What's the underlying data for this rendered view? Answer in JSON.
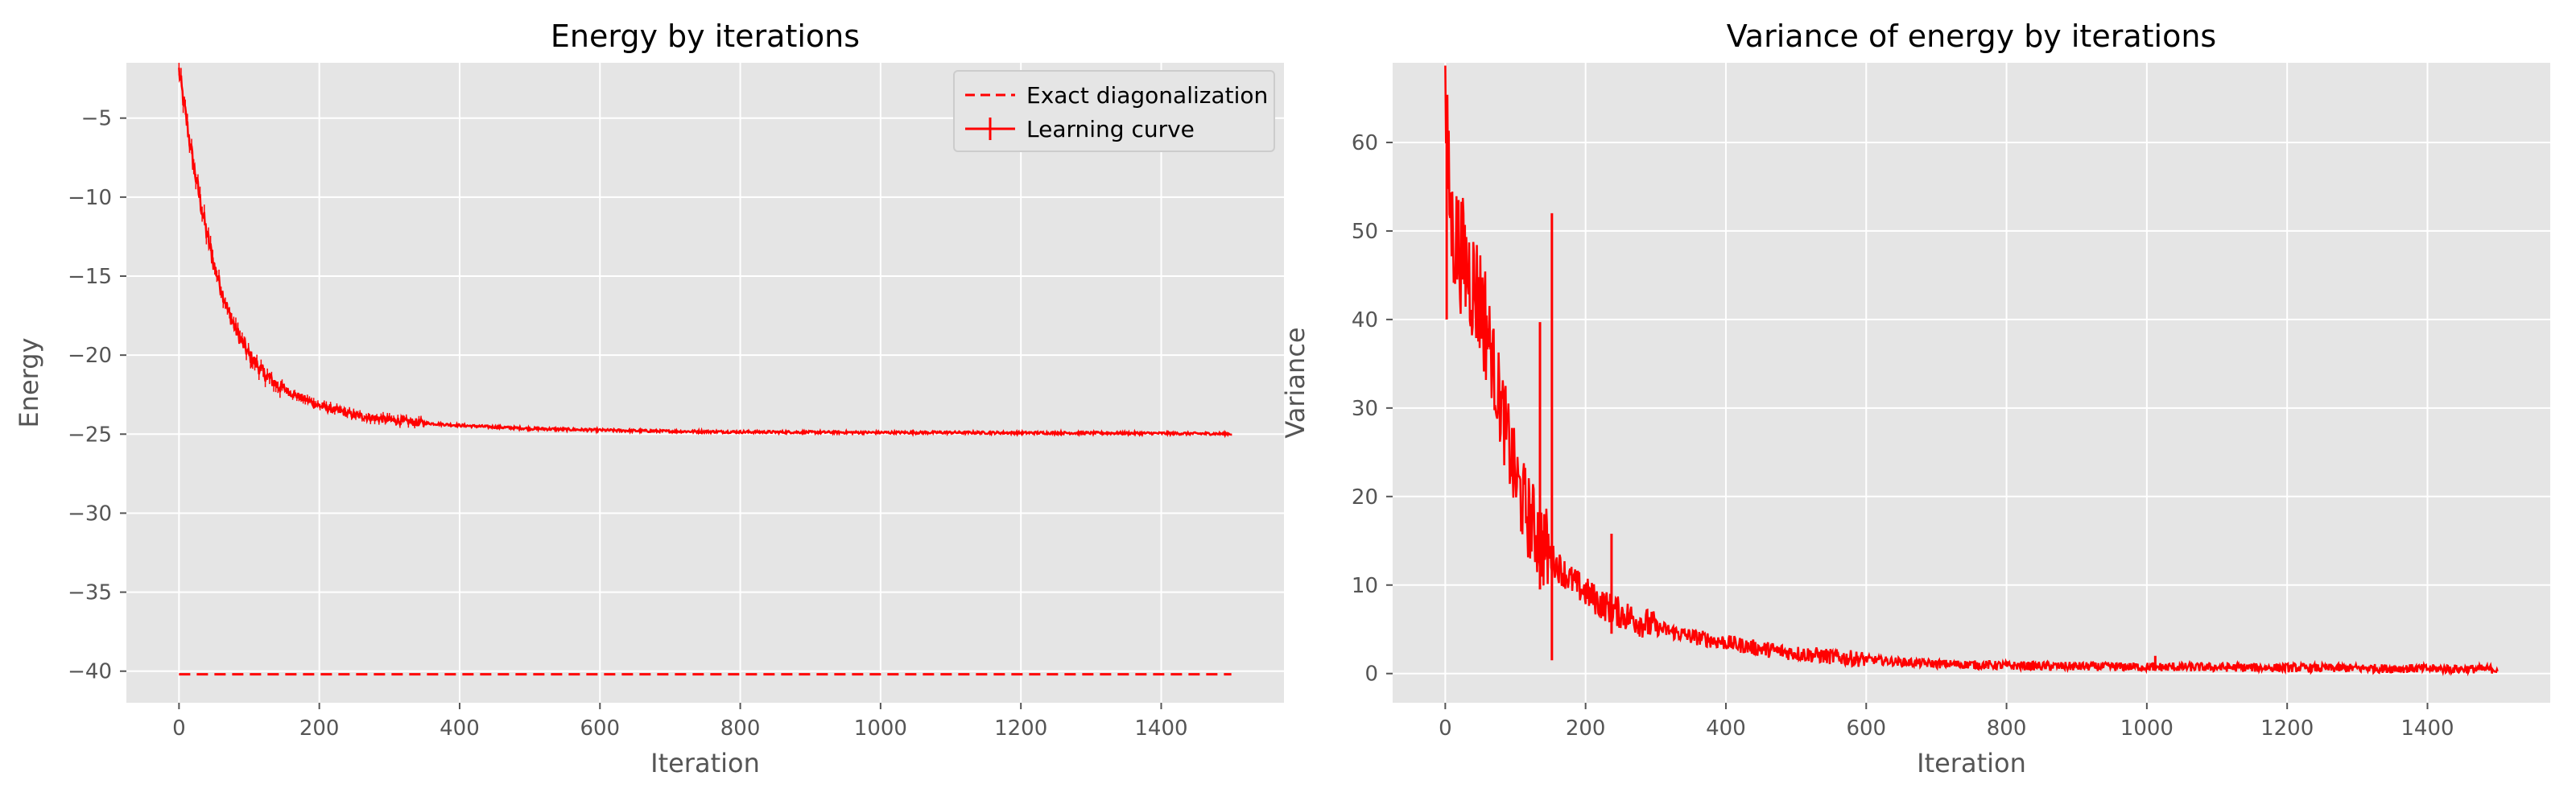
{
  "colors": {
    "panel_bg": "#e5e5e5",
    "grid": "#ffffff",
    "line": "#ff0000",
    "tick_text": "#555555",
    "legend_bg": "#e5e5e5",
    "legend_border": "#cccccc"
  },
  "chart_data": [
    {
      "type": "line",
      "title": "Energy by iterations",
      "xlabel": "Iteration",
      "ylabel": "Energy",
      "xlim": [
        -75,
        1575
      ],
      "ylim": [
        -42,
        -1.5
      ],
      "xticks": [
        0,
        200,
        400,
        600,
        800,
        1000,
        1200,
        1400
      ],
      "xtick_labels": [
        "0",
        "200",
        "400",
        "600",
        "800",
        "1000",
        "1200",
        "1400"
      ],
      "yticks": [
        -40,
        -35,
        -30,
        -25,
        -20,
        -15,
        -10,
        -5
      ],
      "ytick_labels": [
        "−40",
        "−35",
        "−30",
        "−25",
        "−20",
        "−15",
        "−10",
        "−5"
      ],
      "grid": true,
      "legend": "top-right",
      "series": [
        {
          "name": "Exact diagonalization",
          "style": "dashed",
          "color": "#ff0000",
          "x": [
            0,
            1500
          ],
          "y": [
            -40.2,
            -40.2
          ]
        },
        {
          "name": "Learning curve",
          "style": "solid-errorbar",
          "color": "#ff0000",
          "x": [
            0,
            5,
            10,
            20,
            30,
            40,
            50,
            60,
            70,
            80,
            90,
            100,
            120,
            140,
            160,
            180,
            200,
            250,
            300,
            350,
            400,
            450,
            500,
            600,
            700,
            800,
            900,
            1000,
            1100,
            1200,
            1300,
            1400,
            1500
          ],
          "y": [
            -2.0,
            -3.5,
            -5.0,
            -7.8,
            -10.2,
            -12.4,
            -14.3,
            -15.8,
            -17.2,
            -18.3,
            -19.2,
            -20.0,
            -21.1,
            -21.9,
            -22.4,
            -22.8,
            -23.2,
            -23.8,
            -24.1,
            -24.3,
            -24.45,
            -24.55,
            -24.65,
            -24.75,
            -24.82,
            -24.86,
            -24.88,
            -24.9,
            -24.9,
            -24.92,
            -24.93,
            -24.95,
            -24.98
          ]
        }
      ]
    },
    {
      "type": "line",
      "title": "Variance of energy by iterations",
      "xlabel": "Iteration",
      "ylabel": "Variance",
      "xlim": [
        -75,
        1575
      ],
      "ylim": [
        -3.3,
        69
      ],
      "xticks": [
        0,
        200,
        400,
        600,
        800,
        1000,
        1200,
        1400
      ],
      "xtick_labels": [
        "0",
        "200",
        "400",
        "600",
        "800",
        "1000",
        "1200",
        "1400"
      ],
      "yticks": [
        0,
        10,
        20,
        30,
        40,
        50,
        60
      ],
      "ytick_labels": [
        "0",
        "10",
        "20",
        "30",
        "40",
        "50",
        "60"
      ],
      "grid": true,
      "legend": "none",
      "series": [
        {
          "style": "solid-noisy",
          "color": "#ff0000",
          "x": [
            0,
            5,
            10,
            20,
            30,
            40,
            50,
            60,
            70,
            80,
            90,
            100,
            110,
            120,
            130,
            140,
            150,
            160,
            180,
            200,
            220,
            250,
            300,
            350,
            400,
            450,
            500,
            550,
            600,
            650,
            700,
            800,
            900,
            1000,
            1100,
            1200,
            1300,
            1400,
            1500
          ],
          "y": [
            65,
            55,
            50,
            48,
            46,
            44,
            42,
            39,
            34,
            30,
            26,
            22,
            19.5,
            17.5,
            16,
            14.5,
            13.2,
            12.2,
            10.5,
            9.2,
            8.0,
            6.8,
            5.2,
            4.2,
            3.5,
            2.8,
            2.3,
            1.9,
            1.6,
            1.3,
            1.1,
            0.9,
            0.8,
            0.75,
            0.7,
            0.65,
            0.6,
            0.55,
            0.5
          ],
          "spikes": [
            {
              "x": 2,
              "low": 40,
              "high": 65
            },
            {
              "x": 135,
              "low": 9.5,
              "high": 39.7
            },
            {
              "x": 152,
              "low": 1.5,
              "high": 52.0
            },
            {
              "x": 237,
              "low": 4.5,
              "high": 15.8
            },
            {
              "x": 1012,
              "low": 0.3,
              "high": 2.0
            }
          ]
        }
      ]
    }
  ]
}
